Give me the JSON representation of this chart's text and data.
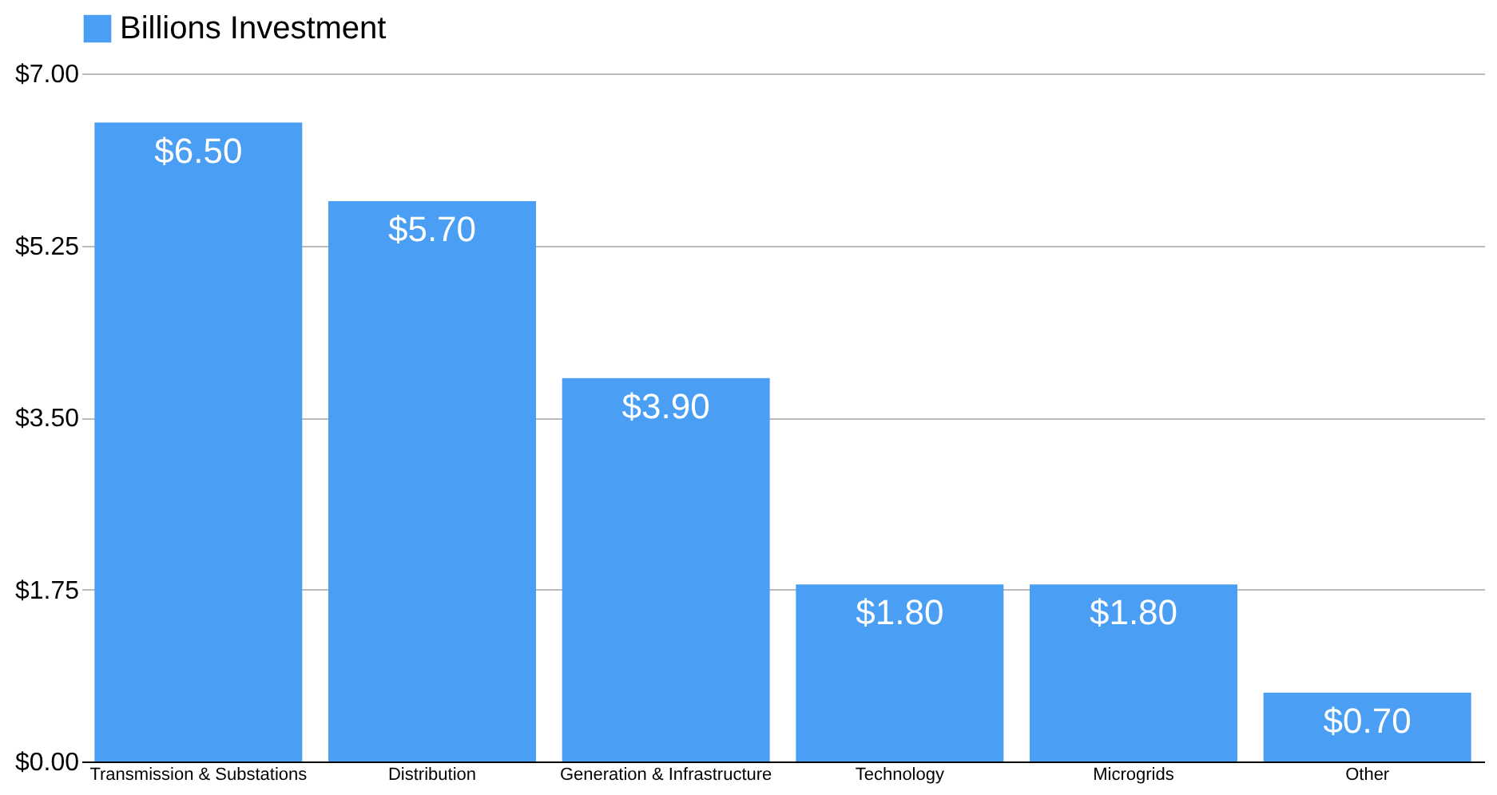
{
  "chart_data": {
    "type": "bar",
    "categories": [
      "Transmission & Substations",
      "Distribution",
      "Generation & Infrastructure",
      "Technology",
      "Microgrids",
      "Other"
    ],
    "series": [
      {
        "name": "Billions Investment",
        "color": "#4a9ff5",
        "values": [
          6.5,
          5.7,
          3.9,
          1.8,
          1.8,
          0.7
        ],
        "value_labels": [
          "$6.50",
          "$5.70",
          "$3.90",
          "$1.80",
          "$1.80",
          "$0.70"
        ]
      }
    ],
    "ylim": [
      0,
      7
    ],
    "yticks": [
      {
        "value": 0,
        "label": "$0.00"
      },
      {
        "value": 1.75,
        "label": "$1.75"
      },
      {
        "value": 3.5,
        "label": "$3.50"
      },
      {
        "value": 5.25,
        "label": "$5.25"
      },
      {
        "value": 7,
        "label": "$7.00"
      }
    ],
    "grid": "y",
    "legend": "top"
  }
}
